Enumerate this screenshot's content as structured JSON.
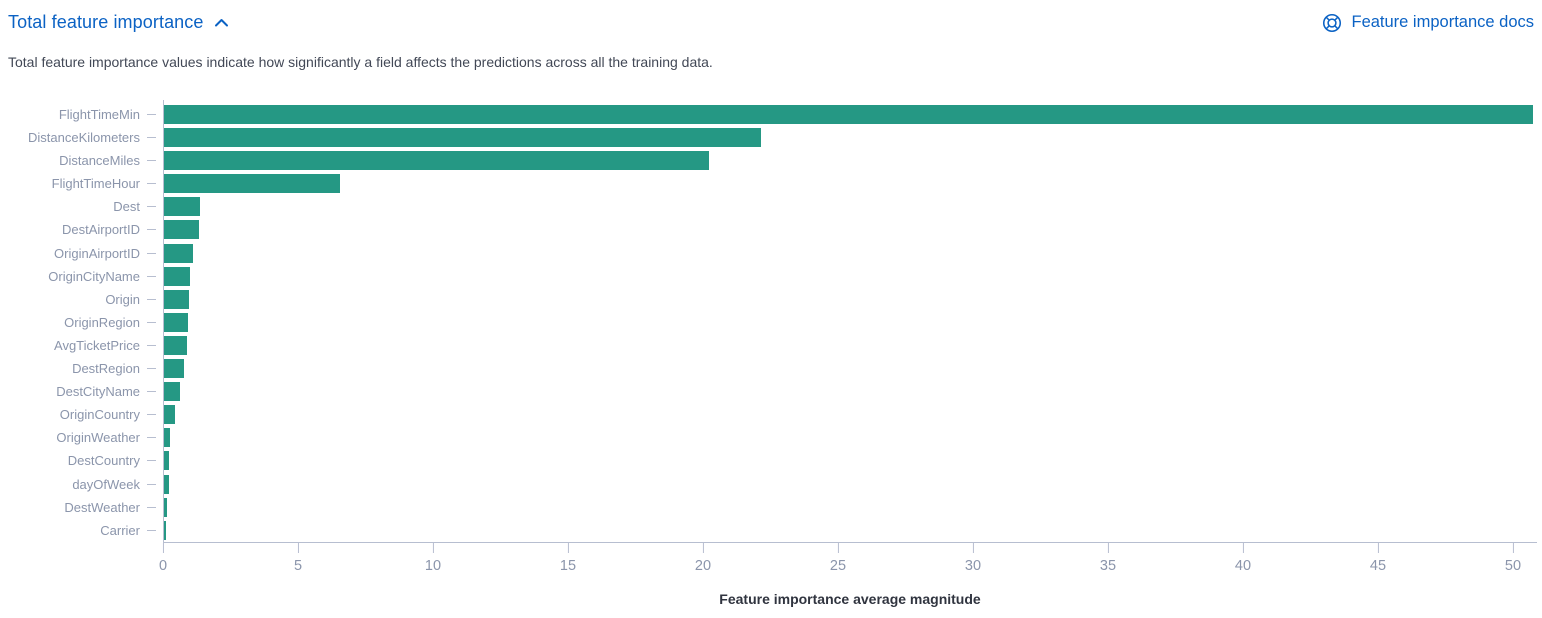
{
  "header": {
    "title": "Total feature importance",
    "collapse_icon": "chevron-up",
    "docs_link": "Feature importance docs",
    "docs_icon": "help-lifebuoy"
  },
  "description": "Total feature importance values indicate how significantly a field affects the predictions across all the training data.",
  "colors": {
    "bar": "#259884",
    "link_blue": "#0b62c4",
    "axis_label": "#8b95ab",
    "axis_line": "#b7bed0",
    "body_text": "#424856"
  },
  "chart_data": {
    "type": "bar",
    "orientation": "horizontal",
    "title": "Total feature importance",
    "xlabel": "Feature importance average magnitude",
    "ylabel": "",
    "xlim": [
      0,
      50.7
    ],
    "x_ticks": [
      0,
      5,
      10,
      15,
      20,
      25,
      30,
      35,
      40,
      45,
      50
    ],
    "grid": false,
    "legend": false,
    "bar_color": "#259884",
    "categories": [
      "FlightTimeMin",
      "DistanceKilometers",
      "DistanceMiles",
      "FlightTimeHour",
      "Dest",
      "DestAirportID",
      "OriginAirportID",
      "OriginCityName",
      "Origin",
      "OriginRegion",
      "AvgTicketPrice",
      "DestRegion",
      "DestCityName",
      "OriginCountry",
      "OriginWeather",
      "DestCountry",
      "dayOfWeek",
      "DestWeather",
      "Carrier"
    ],
    "values": [
      50.7,
      22.1,
      20.2,
      6.5,
      1.35,
      1.3,
      1.07,
      0.97,
      0.93,
      0.88,
      0.84,
      0.73,
      0.6,
      0.42,
      0.22,
      0.18,
      0.17,
      0.12,
      0.07
    ]
  }
}
